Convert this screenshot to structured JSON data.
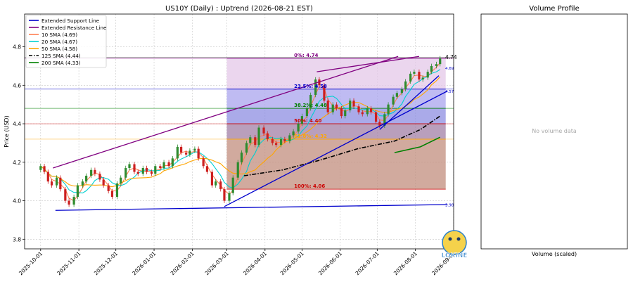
{
  "chart_data": [
    {
      "type": "candlestick",
      "title": "US10Y (Daily) : Uptrend (2026-08-21 EST)",
      "ylabel": "Price (USD)",
      "xlabel": "",
      "ylim": [
        3.75,
        4.97
      ],
      "xlim": [
        "2025-09-18",
        "2026-09-01"
      ],
      "yticks": [
        3.8,
        4.0,
        4.2,
        4.4,
        4.6,
        4.8
      ],
      "yticklabels": [
        "3.8",
        "4.0",
        "4.2",
        "4.4",
        "4.6",
        "4.8"
      ],
      "xticks": [
        "2025-10-01",
        "2025-11-01",
        "2025-12-01",
        "2026-01-01",
        "2026-02-01",
        "2026-03-01",
        "2026-04-01",
        "2026-05-01",
        "2026-06-01",
        "2026-07-01",
        "2026-08-01",
        "2026-09-01"
      ],
      "grid": true,
      "legend_position": "top-left",
      "legend": [
        {
          "label": "Extended Support Line",
          "color": "#0000cc",
          "style": "solid"
        },
        {
          "label": "Extended Resistance Line",
          "color": "#800080",
          "style": "solid"
        },
        {
          "label": "10 SMA (4.69)",
          "color": "#ff7f50",
          "style": "solid"
        },
        {
          "label": "20 SMA (4.67)",
          "color": "#00d0d0",
          "style": "solid"
        },
        {
          "label": "50 SMA (4.58)",
          "color": "#ffa500",
          "style": "solid"
        },
        {
          "label": "125 SMA (4.44)",
          "color": "#000000",
          "style": "dashdot"
        },
        {
          "label": "200 SMA (4.33)",
          "color": "#008000",
          "style": "solid"
        }
      ],
      "close_series": [
        [
          "2025-10-01",
          4.18
        ],
        [
          "2025-10-04",
          4.15
        ],
        [
          "2025-10-07",
          4.1
        ],
        [
          "2025-10-10",
          4.08
        ],
        [
          "2025-10-14",
          4.12
        ],
        [
          "2025-10-17",
          4.06
        ],
        [
          "2025-10-21",
          4.0
        ],
        [
          "2025-10-24",
          3.98
        ],
        [
          "2025-10-28",
          4.02
        ],
        [
          "2025-10-31",
          4.08
        ],
        [
          "2025-11-04",
          4.1
        ],
        [
          "2025-11-07",
          4.13
        ],
        [
          "2025-11-11",
          4.16
        ],
        [
          "2025-11-14",
          4.14
        ],
        [
          "2025-11-18",
          4.11
        ],
        [
          "2025-11-21",
          4.08
        ],
        [
          "2025-11-25",
          4.05
        ],
        [
          "2025-11-28",
          4.02
        ],
        [
          "2025-12-02",
          4.09
        ],
        [
          "2025-12-05",
          4.12
        ],
        [
          "2025-12-09",
          4.17
        ],
        [
          "2025-12-12",
          4.19
        ],
        [
          "2025-12-16",
          4.15
        ],
        [
          "2025-12-19",
          4.14
        ],
        [
          "2025-12-23",
          4.17
        ],
        [
          "2025-12-26",
          4.15
        ],
        [
          "2025-12-30",
          4.14
        ],
        [
          "2026-01-02",
          4.18
        ],
        [
          "2026-01-06",
          4.17
        ],
        [
          "2026-01-09",
          4.2
        ],
        [
          "2026-01-13",
          4.18
        ],
        [
          "2026-01-16",
          4.22
        ],
        [
          "2026-01-20",
          4.28
        ],
        [
          "2026-01-23",
          4.25
        ],
        [
          "2026-01-27",
          4.24
        ],
        [
          "2026-01-30",
          4.26
        ],
        [
          "2026-02-03",
          4.27
        ],
        [
          "2026-02-06",
          4.22
        ],
        [
          "2026-02-10",
          4.18
        ],
        [
          "2026-02-13",
          4.15
        ],
        [
          "2026-02-17",
          4.08
        ],
        [
          "2026-02-20",
          4.1
        ],
        [
          "2026-02-24",
          4.06
        ],
        [
          "2026-02-27",
          4.0
        ],
        [
          "2026-03-03",
          4.04
        ],
        [
          "2026-03-06",
          4.12
        ],
        [
          "2026-03-10",
          4.2
        ],
        [
          "2026-03-13",
          4.25
        ],
        [
          "2026-03-17",
          4.3
        ],
        [
          "2026-03-20",
          4.33
        ],
        [
          "2026-03-24",
          4.29
        ],
        [
          "2026-03-27",
          4.38
        ],
        [
          "2026-03-31",
          4.35
        ],
        [
          "2026-04-03",
          4.32
        ],
        [
          "2026-04-07",
          4.3
        ],
        [
          "2026-04-10",
          4.29
        ],
        [
          "2026-04-14",
          4.32
        ],
        [
          "2026-04-17",
          4.31
        ],
        [
          "2026-04-21",
          4.34
        ],
        [
          "2026-04-24",
          4.36
        ],
        [
          "2026-04-28",
          4.4
        ],
        [
          "2026-05-01",
          4.44
        ],
        [
          "2026-05-05",
          4.48
        ],
        [
          "2026-05-08",
          4.55
        ],
        [
          "2026-05-12",
          4.63
        ],
        [
          "2026-05-15",
          4.6
        ],
        [
          "2026-05-19",
          4.52
        ],
        [
          "2026-05-22",
          4.46
        ],
        [
          "2026-05-26",
          4.5
        ],
        [
          "2026-05-29",
          4.48
        ],
        [
          "2026-06-02",
          4.44
        ],
        [
          "2026-06-05",
          4.47
        ],
        [
          "2026-06-09",
          4.52
        ],
        [
          "2026-06-12",
          4.49
        ],
        [
          "2026-06-16",
          4.46
        ],
        [
          "2026-06-19",
          4.45
        ],
        [
          "2026-06-23",
          4.48
        ],
        [
          "2026-06-26",
          4.46
        ],
        [
          "2026-06-30",
          4.41
        ],
        [
          "2026-07-03",
          4.39
        ],
        [
          "2026-07-07",
          4.45
        ],
        [
          "2026-07-10",
          4.5
        ],
        [
          "2026-07-14",
          4.54
        ],
        [
          "2026-07-17",
          4.56
        ],
        [
          "2026-07-21",
          4.58
        ],
        [
          "2026-07-24",
          4.62
        ],
        [
          "2026-07-28",
          4.66
        ],
        [
          "2026-07-31",
          4.67
        ],
        [
          "2026-08-04",
          4.63
        ],
        [
          "2026-08-07",
          4.64
        ],
        [
          "2026-08-11",
          4.67
        ],
        [
          "2026-08-14",
          4.7
        ],
        [
          "2026-08-18",
          4.71
        ],
        [
          "2026-08-21",
          4.74
        ]
      ],
      "fibonacci": {
        "start": "2026-03-01",
        "end": "2026-08-21",
        "levels": [
          {
            "label": "0%: 4.74",
            "value": 4.74,
            "color": "#800080",
            "fill": "#e4c8e8"
          },
          {
            "label": "23.5%: 4.58",
            "value": 4.58,
            "color": "#0000cc",
            "fill": "#a9a4ee"
          },
          {
            "label": "38.2%: 4.48",
            "value": 4.48,
            "color": "#008000",
            "fill": "#8e8ee2"
          },
          {
            "label": "50%: 4.40",
            "value": 4.4,
            "color": "#cc0000",
            "fill": "#a17fa6"
          },
          {
            "label": "61.8%: 4.32",
            "value": 4.32,
            "color": "#ffa500",
            "fill": "#c18e7d"
          },
          {
            "label": "100%: 4.06",
            "value": 4.06,
            "color": "#cc0000",
            "fill": "#be8a77"
          }
        ]
      },
      "horizontal_lines": [
        {
          "value": 4.745,
          "color": "#555555"
        },
        {
          "value": 4.74,
          "color": "#800080"
        },
        {
          "value": 4.58,
          "color": "#0000cc"
        },
        {
          "value": 4.48,
          "color": "#008000"
        },
        {
          "value": 4.4,
          "color": "#cc0000"
        },
        {
          "value": 4.32,
          "color": "#ffa500"
        }
      ],
      "trendlines": [
        {
          "name": "support-1",
          "color": "#0000cc",
          "points": [
            [
              "2025-10-13",
              3.95
            ],
            [
              "2026-08-27",
              3.98
            ]
          ]
        },
        {
          "name": "support-2",
          "color": "#0000cc",
          "points": [
            [
              "2026-02-27",
              3.97
            ],
            [
              "2026-08-27",
              4.57
            ]
          ]
        },
        {
          "name": "support-3",
          "color": "#0000cc",
          "points": [
            [
              "2026-07-03",
              4.37
            ],
            [
              "2026-08-20",
              4.65
            ]
          ]
        },
        {
          "name": "resistance-1",
          "color": "#800080",
          "points": [
            [
              "2025-10-11",
              4.17
            ],
            [
              "2026-07-18",
              4.75
            ]
          ]
        },
        {
          "name": "resistance-2",
          "color": "#800080",
          "points": [
            [
              "2026-05-13",
              4.67
            ],
            [
              "2026-08-04",
              4.75
            ]
          ]
        }
      ],
      "price_labels": [
        {
          "text": "4.74",
          "value": 4.745,
          "color": "#000000"
        },
        {
          "text": "4.69",
          "value": 4.69,
          "color": "#0000cc"
        },
        {
          "text": "4.57",
          "value": 4.57,
          "color": "#0000cc"
        },
        {
          "text": "3.98",
          "value": 3.98,
          "color": "#0000cc"
        }
      ],
      "sma125_points": [
        [
          "2026-03-15",
          4.13
        ],
        [
          "2026-04-15",
          4.16
        ],
        [
          "2026-05-15",
          4.21
        ],
        [
          "2026-06-15",
          4.27
        ],
        [
          "2026-07-15",
          4.31
        ],
        [
          "2026-08-05",
          4.37
        ],
        [
          "2026-08-21",
          4.44
        ]
      ],
      "sma200_points": [
        [
          "2026-07-15",
          4.25
        ],
        [
          "2026-08-05",
          4.28
        ],
        [
          "2026-08-21",
          4.33
        ]
      ]
    },
    {
      "type": "bar",
      "title": "Volume Profile",
      "xlabel": "Volume (scaled)",
      "empty_message": "No volume data",
      "values": []
    }
  ],
  "watermark": "LOKINE",
  "colors": {
    "up": "#2e8b2e",
    "down": "#cc1f1f",
    "grid": "#c8c8c8"
  }
}
